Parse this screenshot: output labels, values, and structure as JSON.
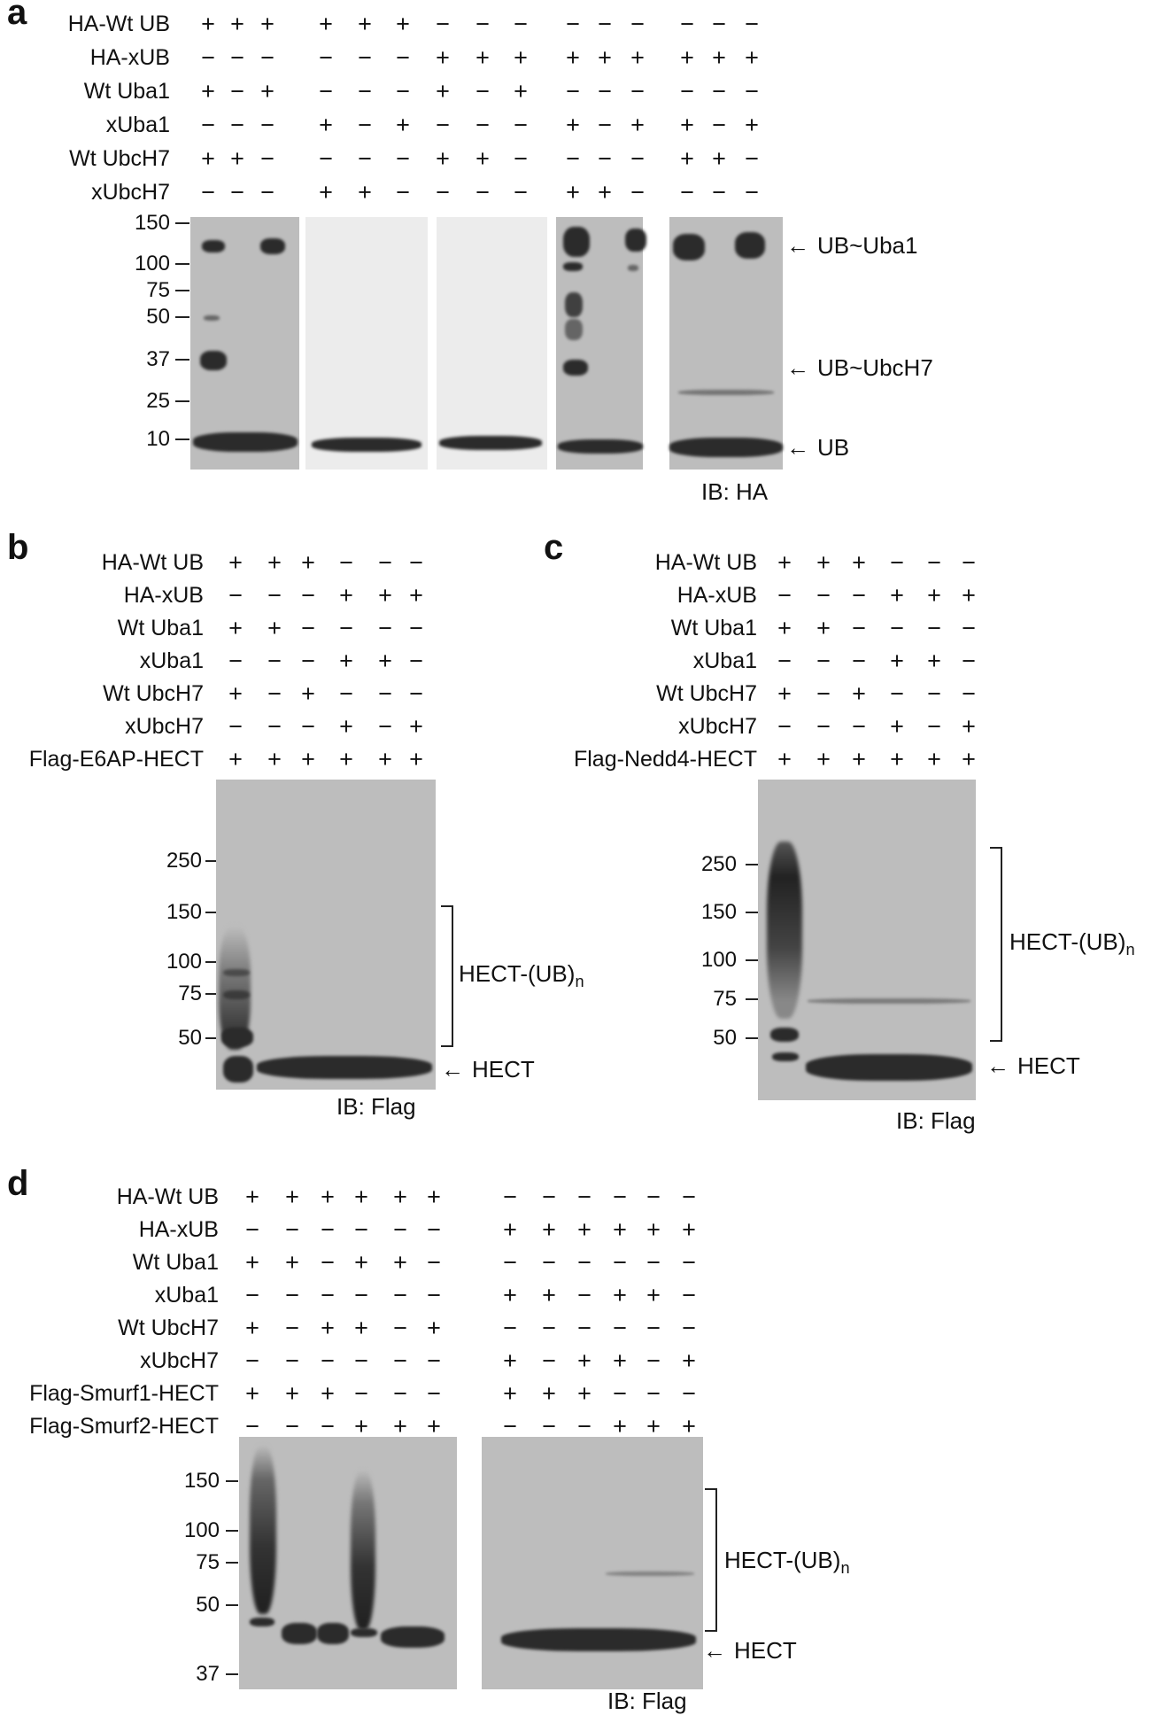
{
  "panel_a": {
    "label": "a",
    "rows": [
      {
        "name": "HA-Wt UB",
        "signs": [
          "+",
          "+",
          "+",
          "+",
          "+",
          "+",
          "−",
          "−",
          "−",
          "−",
          "−",
          "−",
          "−",
          "−",
          "−"
        ]
      },
      {
        "name": "HA-xUB",
        "signs": [
          "−",
          "−",
          "−",
          "−",
          "−",
          "−",
          "+",
          "+",
          "+",
          "+",
          "+",
          "+",
          "+",
          "+",
          "+"
        ]
      },
      {
        "name": "Wt Uba1",
        "signs": [
          "+",
          "−",
          "+",
          "−",
          "−",
          "−",
          "+",
          "−",
          "+",
          "−",
          "−",
          "−",
          "−",
          "−",
          "−"
        ]
      },
      {
        "name": "xUba1",
        "signs": [
          "−",
          "−",
          "−",
          "+",
          "−",
          "+",
          "−",
          "−",
          "−",
          "+",
          "−",
          "+",
          "+",
          "−",
          "+"
        ]
      },
      {
        "name": "Wt UbcH7",
        "signs": [
          "+",
          "+",
          "−",
          "−",
          "−",
          "−",
          "+",
          "+",
          "−",
          "−",
          "−",
          "−",
          "+",
          "+",
          "−"
        ]
      },
      {
        "name": "xUbcH7",
        "signs": [
          "−",
          "−",
          "−",
          "+",
          "+",
          "−",
          "−",
          "−",
          "−",
          "+",
          "+",
          "−",
          "−",
          "−",
          "−"
        ]
      }
    ],
    "markers": [
      "150",
      "100",
      "75",
      "50",
      "37",
      "25",
      "10"
    ],
    "annotations": {
      "uba1": "UB~Uba1",
      "ubch7": "UB~UbcH7",
      "ub": "UB"
    },
    "ib": "IB: HA"
  },
  "panel_b": {
    "label": "b",
    "rows": [
      {
        "name": "HA-Wt UB",
        "signs": [
          "+",
          "+",
          "+",
          "−",
          "−",
          "−"
        ]
      },
      {
        "name": "HA-xUB",
        "signs": [
          "−",
          "−",
          "−",
          "+",
          "+",
          "+"
        ]
      },
      {
        "name": "Wt Uba1",
        "signs": [
          "+",
          "+",
          "−",
          "−",
          "−",
          "−"
        ]
      },
      {
        "name": "xUba1",
        "signs": [
          "−",
          "−",
          "−",
          "+",
          "+",
          "−"
        ]
      },
      {
        "name": "Wt UbcH7",
        "signs": [
          "+",
          "−",
          "+",
          "−",
          "−",
          "−"
        ]
      },
      {
        "name": "xUbcH7",
        "signs": [
          "−",
          "−",
          "−",
          "+",
          "−",
          "+"
        ]
      },
      {
        "name": "Flag-E6AP-HECT",
        "signs": [
          "+",
          "+",
          "+",
          "+",
          "+",
          "+"
        ]
      }
    ],
    "markers": [
      "250",
      "150",
      "100",
      "75",
      "50"
    ],
    "annotations": {
      "ladder_main": "HECT-(UB)",
      "ladder_sub": "n",
      "hect": "HECT"
    },
    "ib": "IB: Flag"
  },
  "panel_c": {
    "label": "c",
    "rows": [
      {
        "name": "HA-Wt UB",
        "signs": [
          "+",
          "+",
          "+",
          "−",
          "−",
          "−"
        ]
      },
      {
        "name": "HA-xUB",
        "signs": [
          "−",
          "−",
          "−",
          "+",
          "+",
          "+"
        ]
      },
      {
        "name": "Wt Uba1",
        "signs": [
          "+",
          "+",
          "−",
          "−",
          "−",
          "−"
        ]
      },
      {
        "name": "xUba1",
        "signs": [
          "−",
          "−",
          "−",
          "+",
          "+",
          "−"
        ]
      },
      {
        "name": "Wt UbcH7",
        "signs": [
          "+",
          "−",
          "+",
          "−",
          "−",
          "−"
        ]
      },
      {
        "name": "xUbcH7",
        "signs": [
          "−",
          "−",
          "−",
          "+",
          "−",
          "+"
        ]
      },
      {
        "name": "Flag-Nedd4-HECT",
        "signs": [
          "+",
          "+",
          "+",
          "+",
          "+",
          "+"
        ]
      }
    ],
    "markers": [
      "250",
      "150",
      "100",
      "75",
      "50"
    ],
    "annotations": {
      "ladder_main": "HECT-(UB)",
      "ladder_sub": "n",
      "hect": "HECT"
    },
    "ib": "IB: Flag"
  },
  "panel_d": {
    "label": "d",
    "rows": [
      {
        "name": "HA-Wt UB",
        "signs": [
          "+",
          "+",
          "+",
          "+",
          "+",
          "+",
          "−",
          "−",
          "−",
          "−",
          "−",
          "−"
        ]
      },
      {
        "name": "HA-xUB",
        "signs": [
          "−",
          "−",
          "−",
          "−",
          "−",
          "−",
          "+",
          "+",
          "+",
          "+",
          "+",
          "+"
        ]
      },
      {
        "name": "Wt Uba1",
        "signs": [
          "+",
          "+",
          "−",
          "+",
          "+",
          "−",
          "−",
          "−",
          "−",
          "−",
          "−",
          "−"
        ]
      },
      {
        "name": "xUba1",
        "signs": [
          "−",
          "−",
          "−",
          "−",
          "−",
          "−",
          "+",
          "+",
          "−",
          "+",
          "+",
          "−"
        ]
      },
      {
        "name": "Wt UbcH7",
        "signs": [
          "+",
          "−",
          "+",
          "+",
          "−",
          "+",
          "−",
          "−",
          "−",
          "−",
          "−",
          "−"
        ]
      },
      {
        "name": "xUbcH7",
        "signs": [
          "−",
          "−",
          "−",
          "−",
          "−",
          "−",
          "+",
          "−",
          "+",
          "+",
          "−",
          "+"
        ]
      },
      {
        "name": "Flag-Smurf1-HECT",
        "signs": [
          "+",
          "+",
          "+",
          "−",
          "−",
          "−",
          "+",
          "+",
          "+",
          "−",
          "−",
          "−"
        ]
      },
      {
        "name": "Flag-Smurf2-HECT",
        "signs": [
          "−",
          "−",
          "−",
          "+",
          "+",
          "+",
          "−",
          "−",
          "−",
          "+",
          "+",
          "+"
        ]
      }
    ],
    "markers": [
      "150",
      "100",
      "75",
      "50",
      "37"
    ],
    "annotations": {
      "ladder_main": "HECT-(UB)",
      "ladder_sub": "n",
      "hect": "HECT"
    },
    "ib": "IB: Flag"
  }
}
